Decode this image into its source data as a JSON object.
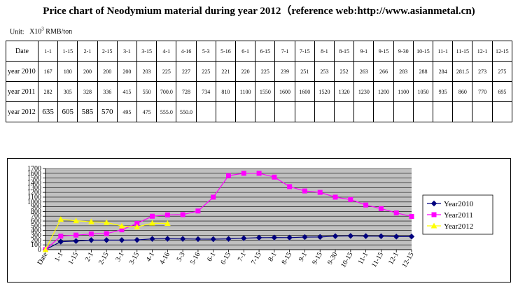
{
  "title": "Price chart of Neodymium material during year 2012（reference web:http://www.asianmetal.cn)",
  "unit": {
    "label": "Unit:",
    "value_prefix": "X10",
    "exponent": "3",
    "value_suffix": " RMB/ton"
  },
  "table": {
    "header_label": "Date",
    "dates": [
      "1-1",
      "1-15",
      "2-1",
      "2-15",
      "3-1",
      "3-15",
      "4-1",
      "4-16",
      "5-3",
      "5-16",
      "6-1",
      "6-15",
      "7-1",
      "7-15",
      "8-1",
      "8-15",
      "9-1",
      "9-15",
      "9-30",
      "10-15",
      "11-1",
      "11-15",
      "12-1",
      "12-15"
    ],
    "rows": [
      {
        "label": "year 2010",
        "cells": [
          "167",
          "180",
          "200",
          "200",
          "200",
          "203",
          "225",
          "227",
          "225",
          "221",
          "220",
          "225",
          "239",
          "251",
          "253",
          "252",
          "263",
          "266",
          "283",
          "288",
          "284",
          "281.5",
          "273",
          "275"
        ]
      },
      {
        "label": "year 2011",
        "cells": [
          "282",
          "305",
          "328",
          "336",
          "415",
          "550",
          "700.0",
          "728",
          "734",
          "810",
          "1100",
          "1550",
          "1600",
          "1600",
          "1520",
          "1320",
          "1230",
          "1200",
          "1100",
          "1050",
          "935",
          "860",
          "770",
          "695"
        ]
      },
      {
        "label": "year 2012",
        "cells": [
          "635",
          "605",
          "585",
          "570",
          "495",
          "475",
          "555.0",
          "550.0",
          "",
          "",
          "",
          "",
          "",
          "",
          "",
          "",
          "",
          "",
          "",
          "",
          "",
          "",
          "",
          ""
        ]
      }
    ]
  },
  "chart_data": {
    "type": "line",
    "categories": [
      "Date",
      "1-1",
      "1-15",
      "2-1",
      "2-15",
      "3-1",
      "3-15",
      "4-1",
      "4-16",
      "5-3",
      "5-16",
      "6-1",
      "6-15",
      "7-1",
      "7-15",
      "8-1",
      "8-15",
      "9-1",
      "9-15",
      "9-30",
      "10-15",
      "11-1",
      "11-15",
      "12-1",
      "12-15"
    ],
    "ylim": [
      0,
      1700
    ],
    "yticks": [
      0,
      100,
      200,
      300,
      400,
      500,
      600,
      700,
      800,
      900,
      1000,
      1100,
      1200,
      1300,
      1400,
      1500,
      1600,
      1700
    ],
    "grid": true,
    "legend_position": "right",
    "series": [
      {
        "name": "Year2010",
        "color": "#00007f",
        "marker": "diamond",
        "values": [
          0,
          167,
          180,
          200,
          200,
          200,
          203,
          225,
          227,
          225,
          221,
          220,
          225,
          239,
          251,
          253,
          252,
          263,
          266,
          283,
          288,
          284,
          281.5,
          273,
          275
        ]
      },
      {
        "name": "Year2011",
        "color": "#ff00ff",
        "marker": "square",
        "values": [
          0,
          282,
          305,
          328,
          336,
          415,
          550,
          700,
          728,
          734,
          810,
          1100,
          1550,
          1600,
          1600,
          1520,
          1320,
          1230,
          1200,
          1100,
          1050,
          935,
          860,
          770,
          695
        ]
      },
      {
        "name": "Year2012",
        "color": "#ffff00",
        "marker": "triangle",
        "values": [
          0,
          635,
          605,
          585,
          570,
          495,
          475,
          555,
          550,
          null,
          null,
          null,
          null,
          null,
          null,
          null,
          null,
          null,
          null,
          null,
          null,
          null,
          null,
          null,
          null
        ]
      }
    ]
  }
}
